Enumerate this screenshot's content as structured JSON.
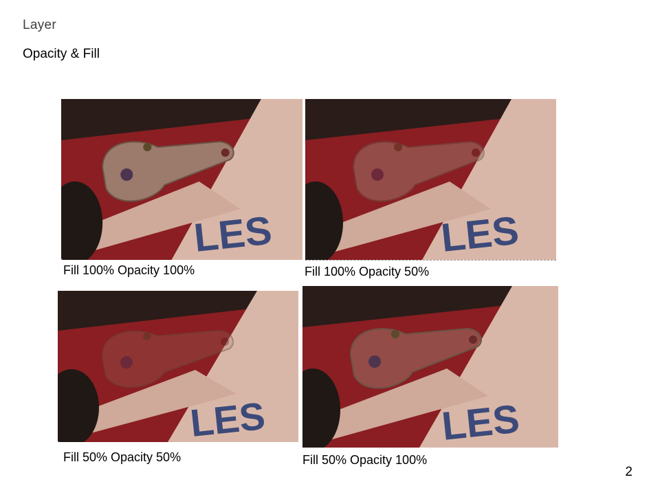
{
  "slide": {
    "title": "Layer",
    "subtitle": "Opacity & Fill",
    "page_number": "2"
  },
  "panels": [
    {
      "caption": "Fill 100% Opacity 100%",
      "fill": 1.0,
      "opacity": 1.0
    },
    {
      "caption": "Fill 100% Opacity 50%",
      "fill": 1.0,
      "opacity": 0.5
    },
    {
      "caption": "Fill 50% Opacity 50%",
      "fill": 0.5,
      "opacity": 0.5
    },
    {
      "caption": "Fill 50% Opacity 100%",
      "fill": 0.5,
      "opacity": 1.0
    }
  ],
  "colors": {
    "background_dark": "#2a1c18",
    "red_band": "#8a1e22",
    "paper": "#d9b7a8",
    "shape": "#9c7a6c",
    "letters": "#3c4a7a"
  }
}
